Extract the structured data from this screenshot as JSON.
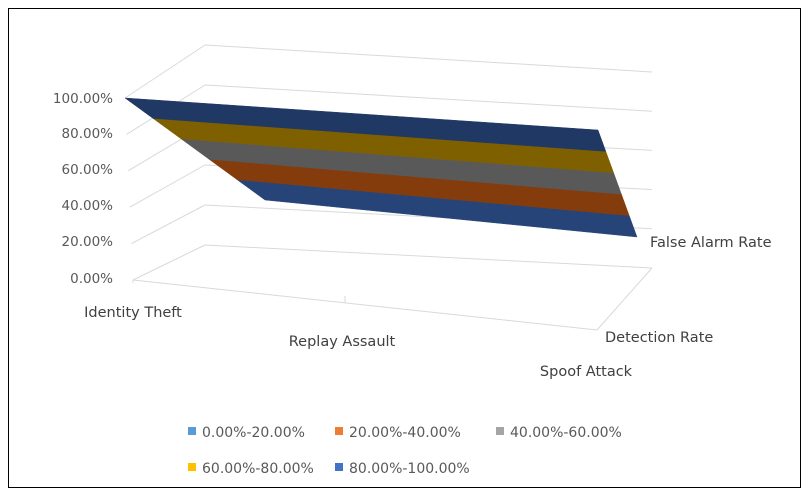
{
  "chart_data": {
    "type": "surface",
    "title": "",
    "y_ticks": [
      "0.00%",
      "20.00%",
      "40.00%",
      "60.00%",
      "80.00%",
      "100.00%"
    ],
    "ylim": [
      0,
      100
    ],
    "x_categories": [
      "Identity Theft",
      "Replay Assault",
      "Spoof Attack"
    ],
    "depth_series": [
      "Detection Rate",
      "False Alarm Rate"
    ],
    "values": {
      "Detection Rate": [
        100,
        100,
        100
      ],
      "False Alarm Rate": [
        0,
        0,
        0
      ]
    },
    "grid": true,
    "legend_position": "bottom",
    "legend": [
      {
        "label": "0.00%-20.00%",
        "color": "#5B9BD5"
      },
      {
        "label": "20.00%-40.00%",
        "color": "#ED7D31"
      },
      {
        "label": "40.00%-60.00%",
        "color": "#A5A5A5"
      },
      {
        "label": "60.00%-80.00%",
        "color": "#FFC000"
      },
      {
        "label": "80.00%-100.00%",
        "color": "#4472C4"
      }
    ],
    "band_colors": [
      "#264478",
      "#843C0C",
      "#595959",
      "#7F6000",
      "#203864"
    ]
  }
}
